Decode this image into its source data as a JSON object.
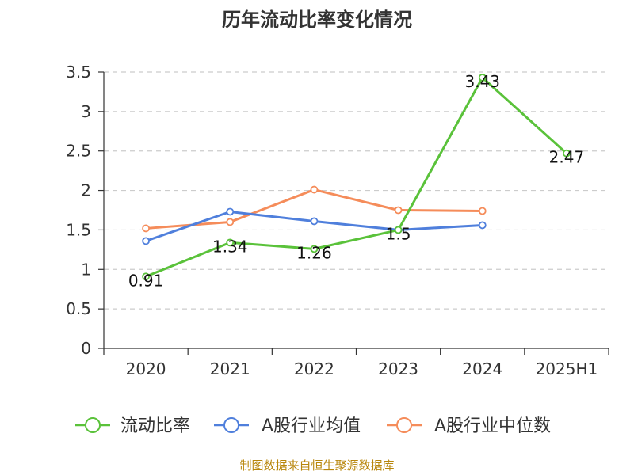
{
  "chart_data": {
    "type": "line",
    "title": "历年流动比率变化情况",
    "categories": [
      "2020",
      "2021",
      "2022",
      "2023",
      "2024",
      "2025H1"
    ],
    "ylim": [
      0,
      3.5
    ],
    "yticks": [
      0,
      0.5,
      1,
      1.5,
      2,
      2.5,
      3,
      3.5
    ],
    "ytick_labels": [
      "0",
      "0.5",
      "1",
      "1.5",
      "2",
      "2.5",
      "3",
      "3.5"
    ],
    "grid": true,
    "legend_position": "bottom",
    "series": [
      {
        "name": "流动比率",
        "color": "#5ac23a",
        "values": [
          0.91,
          1.34,
          1.26,
          1.5,
          3.43,
          2.47
        ],
        "data_labels": [
          "0.91",
          "1.34",
          "1.26",
          "1.5",
          "3.43",
          "2.47"
        ]
      },
      {
        "name": "A股行业均值",
        "color": "#4f7fdc",
        "values": [
          1.36,
          1.73,
          1.61,
          1.5,
          1.56,
          null
        ]
      },
      {
        "name": "A股行业中位数",
        "color": "#f58c5a",
        "values": [
          1.52,
          1.6,
          2.01,
          1.75,
          1.74,
          null
        ]
      }
    ]
  },
  "source": "制图数据来自恒生聚源数据库"
}
